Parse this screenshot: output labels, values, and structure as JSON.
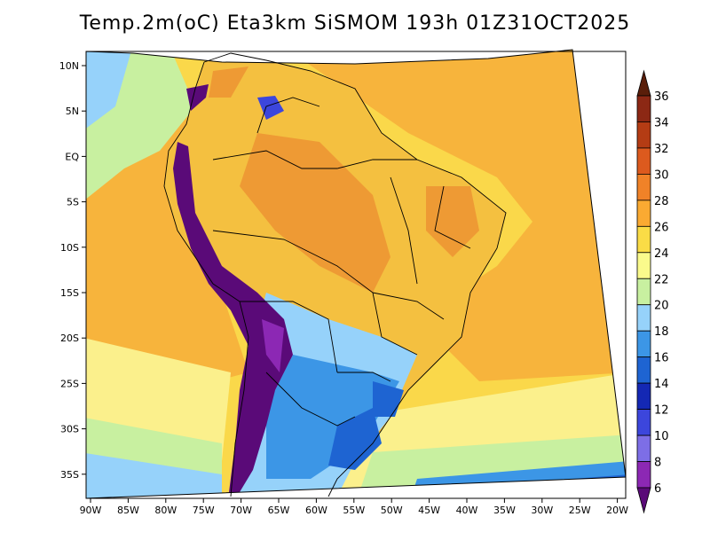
{
  "title": "Temp.2m(oC) Eta3km SiSMOM 193h 01Z31OCT2025",
  "lat_labels": [
    "10N",
    "5N",
    "EQ",
    "5S",
    "10S",
    "15S",
    "20S",
    "25S",
    "30S",
    "35S"
  ],
  "lon_labels": [
    "90W",
    "85W",
    "80W",
    "75W",
    "70W",
    "65W",
    "60W",
    "55W",
    "50W",
    "45W",
    "40W",
    "35W",
    "30W",
    "25W",
    "20W"
  ],
  "colorbar": {
    "levels": [
      "6",
      "8",
      "10",
      "12",
      "14",
      "16",
      "18",
      "20",
      "22",
      "24",
      "26",
      "28",
      "30",
      "32",
      "34",
      "36"
    ],
    "colors": [
      "#5a0a78",
      "#8c28b4",
      "#7d6ee6",
      "#3c46dc",
      "#1428b4",
      "#1e64d2",
      "#3c96e6",
      "#96d2fa",
      "#c8f0a0",
      "#fafa8c",
      "#fadc46",
      "#faaa32",
      "#f08228",
      "#dc5a1e",
      "#b43c14",
      "#8c2814",
      "#5a1e0a"
    ]
  },
  "colors": {
    "ocean_warm": "#f7b43c",
    "ocean_mid": "#fad84a",
    "ocean_cool": "#fbf08c",
    "land_warm": "#f4c040",
    "land_hot": "#ee9a34",
    "andes": "#5a0a78",
    "border": "#000000"
  }
}
